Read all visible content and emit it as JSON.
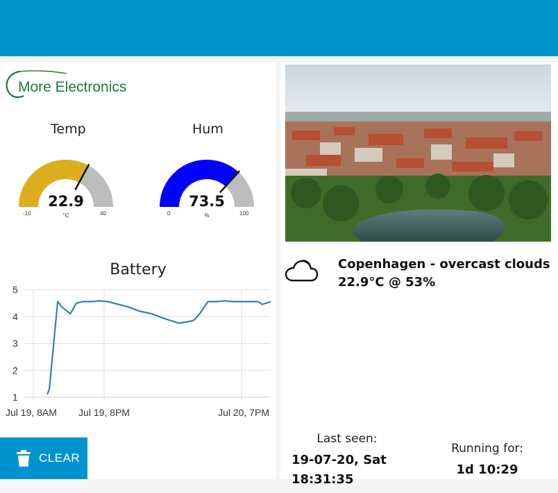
{
  "header": {
    "color": "#0094ce"
  },
  "logo": {
    "text": "More Electronics",
    "color": "#1a7a3a"
  },
  "gauges": [
    {
      "title": "Temp",
      "value": "22.9",
      "unit": "°C",
      "min": "-10",
      "max": "40",
      "numeric": 22.9,
      "range": [
        -10,
        40
      ],
      "color": "#dcae1d"
    },
    {
      "title": "Hum",
      "value": "73.5",
      "unit": "%",
      "min": "0",
      "max": "100",
      "numeric": 73.5,
      "range": [
        0,
        100
      ],
      "color": "#0000ff"
    }
  ],
  "chart_data": {
    "type": "line",
    "title": "Battery",
    "xlabel": "",
    "ylabel": "",
    "ylim": [
      1,
      5
    ],
    "yticks": [
      "1",
      "2",
      "3",
      "4",
      "5"
    ],
    "xticks": [
      "Jul 19, 8AM",
      "Jul 19, 8PM",
      "Jul 20, 7PM"
    ],
    "grid": true,
    "color": "#2e7fbf",
    "x_hours": [
      0,
      0.5,
      2.5,
      3.5,
      5.5,
      7,
      8.5,
      10.5,
      12.5,
      14.5,
      17,
      19.5,
      22,
      25,
      27.5,
      29.5,
      31.5,
      33.5,
      35,
      36.5,
      38.5,
      40.5,
      42.5,
      44.5,
      46.5,
      48.5,
      50.5,
      51.5,
      52.5,
      53.5
    ],
    "values": [
      1.1,
      1.3,
      4.55,
      4.35,
      4.1,
      4.5,
      4.55,
      4.55,
      4.58,
      4.55,
      4.45,
      4.35,
      4.2,
      4.1,
      3.95,
      3.85,
      3.75,
      3.8,
      3.85,
      4.1,
      4.55,
      4.55,
      4.58,
      4.55,
      4.55,
      4.55,
      4.55,
      4.45,
      4.5,
      4.55
    ]
  },
  "clear_button": {
    "label": "CLEAR"
  },
  "weather": {
    "city_line": "Copenhagen - overcast clouds",
    "reading_line": "22.9°C @ 53%"
  },
  "last_seen": {
    "label": "Last seen:",
    "date": "19-07-20, Sat",
    "time": "18:31:35"
  },
  "running": {
    "label": "Running for:",
    "value": "1d 10:29"
  }
}
